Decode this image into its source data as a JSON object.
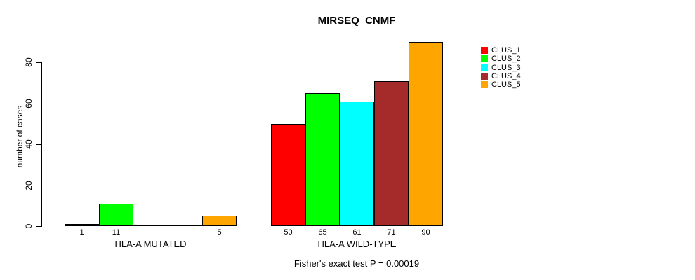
{
  "chart_data": {
    "type": "bar",
    "title": "MIRSEQ_CNMF",
    "ylabel": "number of cases",
    "xlabel": "",
    "ylim": [
      0,
      90
    ],
    "yticks": [
      0,
      20,
      40,
      60,
      80
    ],
    "grid": false,
    "legend_position": "right-outside",
    "categories": [
      "HLA-A MUTATED",
      "HLA-A WILD-TYPE"
    ],
    "series": [
      {
        "name": "CLUS_1",
        "color": "#FF0000",
        "values": [
          1,
          50
        ]
      },
      {
        "name": "CLUS_2",
        "color": "#00FF00",
        "values": [
          11,
          65
        ]
      },
      {
        "name": "CLUS_3",
        "color": "#00FFFF",
        "values": [
          0,
          61
        ]
      },
      {
        "name": "CLUS_4",
        "color": "#A52A2A",
        "values": [
          0,
          71
        ]
      },
      {
        "name": "CLUS_5",
        "color": "#FFA500",
        "values": [
          5,
          90
        ]
      }
    ],
    "bar_value_labels": [
      [
        "1",
        "11",
        "",
        "",
        "5"
      ],
      [
        "50",
        "65",
        "61",
        "71",
        "90"
      ]
    ],
    "annotation": "Fisher's exact test P = 0.00019",
    "axis_color": "#000000",
    "background_color": "#FFFFFF"
  }
}
